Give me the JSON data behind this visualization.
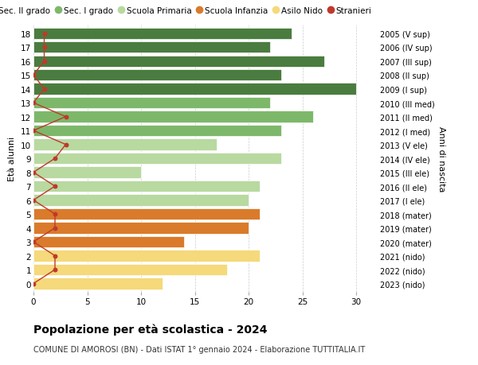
{
  "ages": [
    18,
    17,
    16,
    15,
    14,
    13,
    12,
    11,
    10,
    9,
    8,
    7,
    6,
    5,
    4,
    3,
    2,
    1,
    0
  ],
  "years": [
    "2005 (V sup)",
    "2006 (IV sup)",
    "2007 (III sup)",
    "2008 (II sup)",
    "2009 (I sup)",
    "2010 (III med)",
    "2011 (II med)",
    "2012 (I med)",
    "2013 (V ele)",
    "2014 (IV ele)",
    "2015 (III ele)",
    "2016 (II ele)",
    "2017 (I ele)",
    "2018 (mater)",
    "2019 (mater)",
    "2020 (mater)",
    "2021 (nido)",
    "2022 (nido)",
    "2023 (nido)"
  ],
  "values": [
    24,
    22,
    27,
    23,
    30,
    22,
    26,
    23,
    17,
    23,
    10,
    21,
    20,
    21,
    20,
    14,
    21,
    18,
    12
  ],
  "stranieri": [
    1,
    1,
    1,
    0,
    1,
    0,
    3,
    0,
    3,
    2,
    0,
    2,
    0,
    2,
    2,
    0,
    2,
    2,
    0
  ],
  "bar_colors": [
    "#4a7c3f",
    "#4a7c3f",
    "#4a7c3f",
    "#4a7c3f",
    "#4a7c3f",
    "#7db86a",
    "#7db86a",
    "#7db86a",
    "#b8d9a0",
    "#b8d9a0",
    "#b8d9a0",
    "#b8d9a0",
    "#b8d9a0",
    "#d97b2a",
    "#d97b2a",
    "#d97b2a",
    "#f5d97a",
    "#f5d97a",
    "#f5d97a"
  ],
  "legend_labels": [
    "Sec. II grado",
    "Sec. I grado",
    "Scuola Primaria",
    "Scuola Infanzia",
    "Asilo Nido",
    "Stranieri"
  ],
  "legend_colors": [
    "#4a7c3f",
    "#7db86a",
    "#b8d9a0",
    "#d97b2a",
    "#f5d97a",
    "#c0392b"
  ],
  "stranieri_color": "#c0392b",
  "ylabel_left": "Età alunni",
  "ylabel_right": "Anni di nascita",
  "title": "Popolazione per età scolastica - 2024",
  "subtitle": "COMUNE DI AMOROSI (BN) - Dati ISTAT 1° gennaio 2024 - Elaborazione TUTTITALIA.IT",
  "xlim": [
    0,
    32
  ],
  "xticks": [
    0,
    5,
    10,
    15,
    20,
    25,
    30
  ],
  "background_color": "#ffffff",
  "grid_color": "#cccccc"
}
